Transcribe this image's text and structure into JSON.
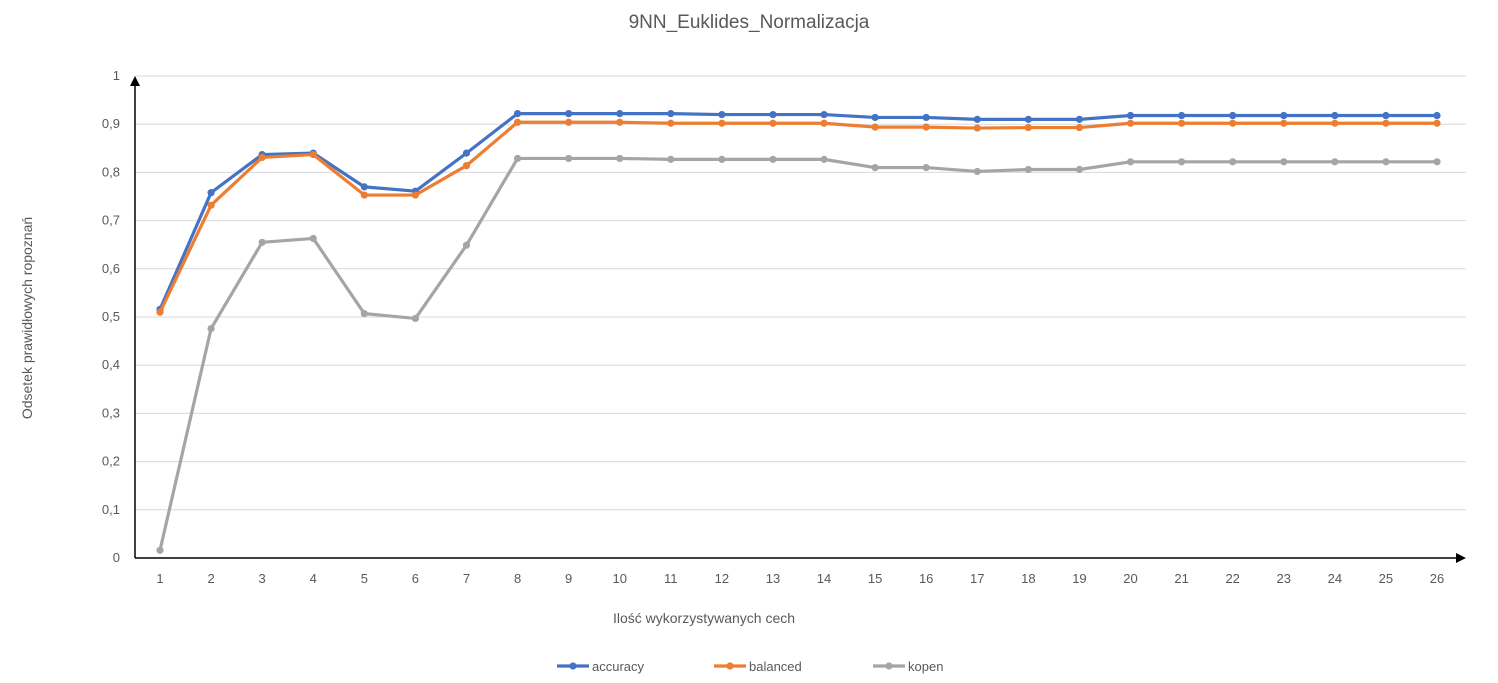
{
  "chart_data": {
    "type": "line",
    "title": "9NN_Euklides_Normalizacja",
    "xlabel": "Ilość wykorzystywanych cech",
    "ylabel": "Odsetek prawidłowych ropoznań",
    "categories": [
      "1",
      "2",
      "3",
      "4",
      "5",
      "6",
      "7",
      "8",
      "9",
      "10",
      "11",
      "12",
      "13",
      "14",
      "15",
      "16",
      "17",
      "18",
      "19",
      "20",
      "21",
      "22",
      "23",
      "24",
      "25",
      "26"
    ],
    "ylim": [
      0,
      1
    ],
    "yticks": [
      "0",
      "0,1",
      "0,2",
      "0,3",
      "0,4",
      "0,5",
      "0,6",
      "0,7",
      "0,8",
      "0,9",
      "1"
    ],
    "grid": true,
    "legend_position": "bottom",
    "series": [
      {
        "name": "accuracy",
        "color": "#4472c4",
        "values": [
          0.516,
          0.758,
          0.837,
          0.84,
          0.77,
          0.761,
          0.84,
          0.922,
          0.922,
          0.922,
          0.922,
          0.92,
          0.92,
          0.92,
          0.914,
          0.914,
          0.91,
          0.91,
          0.91,
          0.918,
          0.918,
          0.918,
          0.918,
          0.918,
          0.918,
          0.918
        ]
      },
      {
        "name": "balanced",
        "color": "#ed7d31",
        "values": [
          0.51,
          0.732,
          0.831,
          0.837,
          0.753,
          0.753,
          0.814,
          0.904,
          0.904,
          0.904,
          0.902,
          0.902,
          0.902,
          0.902,
          0.894,
          0.894,
          0.892,
          0.893,
          0.893,
          0.902,
          0.902,
          0.902,
          0.902,
          0.902,
          0.902,
          0.902
        ]
      },
      {
        "name": "kopen",
        "color": "#a5a5a5",
        "values": [
          0.016,
          0.476,
          0.655,
          0.663,
          0.507,
          0.497,
          0.649,
          0.829,
          0.829,
          0.829,
          0.827,
          0.827,
          0.827,
          0.827,
          0.81,
          0.81,
          0.802,
          0.806,
          0.806,
          0.822,
          0.822,
          0.822,
          0.822,
          0.822,
          0.822,
          0.822
        ]
      }
    ]
  }
}
